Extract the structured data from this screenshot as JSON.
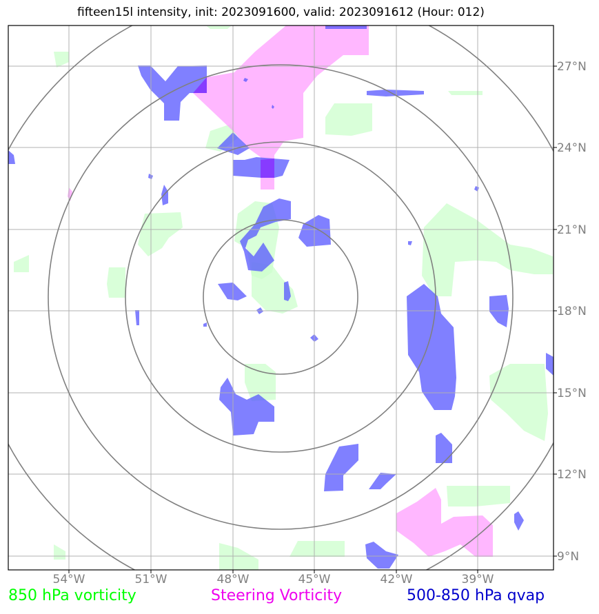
{
  "title": "fifteen15l intensity, init: 2023091600, valid: 2023091612 (Hour: 012)",
  "lon_labels": [
    "54°W",
    "51°W",
    "48°W",
    "45°W",
    "42°W",
    "39°W"
  ],
  "lat_labels": [
    "27°N",
    "24°N",
    "21°N",
    "18°N",
    "15°N",
    "12°N",
    "9°N"
  ],
  "legend": {
    "vort850": {
      "label": "850 hPa vorticity",
      "color": "#00ff00"
    },
    "steering": {
      "label": "Steering Vorticity",
      "color": "#ee00ee"
    },
    "qvap": {
      "label": "500-850 hPa qvap",
      "color": "#0000cc"
    }
  },
  "colors": {
    "vort850_fill": "#ccffcc",
    "steering_fill": "#ff99ff",
    "qvap_fill": "#5555ff",
    "grid": "#b0b0b0",
    "range_rings": "#808080"
  },
  "extent": {
    "lon_min": -56.3,
    "lon_max": -36.3,
    "lat_min": 8.5,
    "lat_max": 28.5
  },
  "storm_center": {
    "lon": -46.3,
    "lat": 18.6
  },
  "range_rings_deg": [
    2.8,
    5.6,
    8.5,
    11.3
  ]
}
